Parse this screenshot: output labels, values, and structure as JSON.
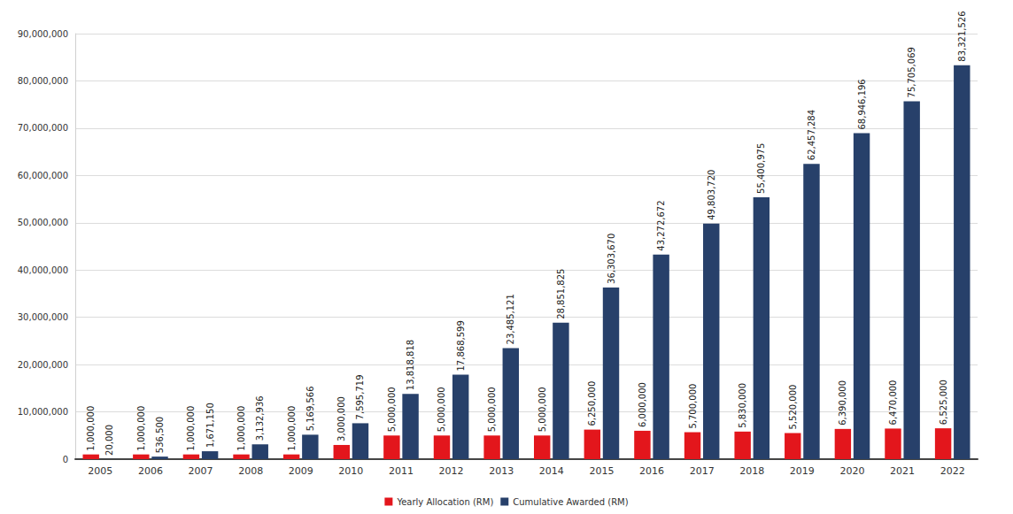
{
  "chart_data": {
    "type": "bar",
    "categories": [
      "2005",
      "2006",
      "2007",
      "2008",
      "2009",
      "2010",
      "2011",
      "2012",
      "2013",
      "2014",
      "2015",
      "2016",
      "2017",
      "2018",
      "2019",
      "2020",
      "2021",
      "2022"
    ],
    "series": [
      {
        "name": "Yearly Allocation (RM)",
        "color": "#e3161c",
        "values": [
          1000000,
          1000000,
          1000000,
          1000000,
          1000000,
          3000000,
          5000000,
          5000000,
          5000000,
          5000000,
          6250000,
          6000000,
          5700000,
          5830000,
          5520000,
          6390000,
          6470000,
          6525000
        ],
        "value_labels": [
          "1,000,000",
          "1,000,000",
          "1,000,000",
          "1,000,000",
          "1,000,000",
          "3,000,000",
          "5,000,000",
          "5,000,000",
          "5,000,000",
          "5,000,000",
          "6,250,000",
          "6,000,000",
          "5,700,000",
          "5,830,000",
          "5,520,000",
          "6,390,000",
          "6,470,000",
          "6,525,000"
        ]
      },
      {
        "name": "Cumulative Awarded (RM)",
        "color": "#27406a",
        "values": [
          20000,
          536500,
          1671150,
          3132936,
          5169566,
          7595719,
          13818818,
          17868599,
          23485121,
          28851825,
          36303670,
          43272672,
          49803720,
          55400975,
          62457284,
          68946196,
          75705069,
          83321526
        ],
        "value_labels": [
          "20,000",
          "536,500",
          "1,671,150",
          "3,132,936",
          "5,169,566",
          "7,595,719",
          "13,818,818",
          "17,868,599",
          "23,485,121",
          "28,851,825",
          "36,303,670",
          "43,272,672",
          "49,803,720",
          "55,400,975",
          "62,457,284",
          "68,946,196",
          "75,705,069",
          "83,321,526"
        ]
      }
    ],
    "ylim": [
      0,
      90000000
    ],
    "yticks": [
      0,
      {
        "value": 10000000,
        "label": "10,000,000"
      },
      {
        "value": 20000000,
        "label": "20,000,000"
      },
      {
        "value": 30000000,
        "label": "30,000,000"
      },
      {
        "value": 40000000,
        "label": "40,000,000"
      },
      {
        "value": 50000000,
        "label": "50,000,000"
      },
      {
        "value": 60000000,
        "label": "60,000,000"
      },
      {
        "value": 70000000,
        "label": "70,000,000"
      },
      {
        "value": 80000000,
        "label": "80,000,000"
      },
      {
        "value": 90000000,
        "label": "90,000,000"
      }
    ],
    "grid": true,
    "legend": "bottom",
    "data_labels": true
  }
}
